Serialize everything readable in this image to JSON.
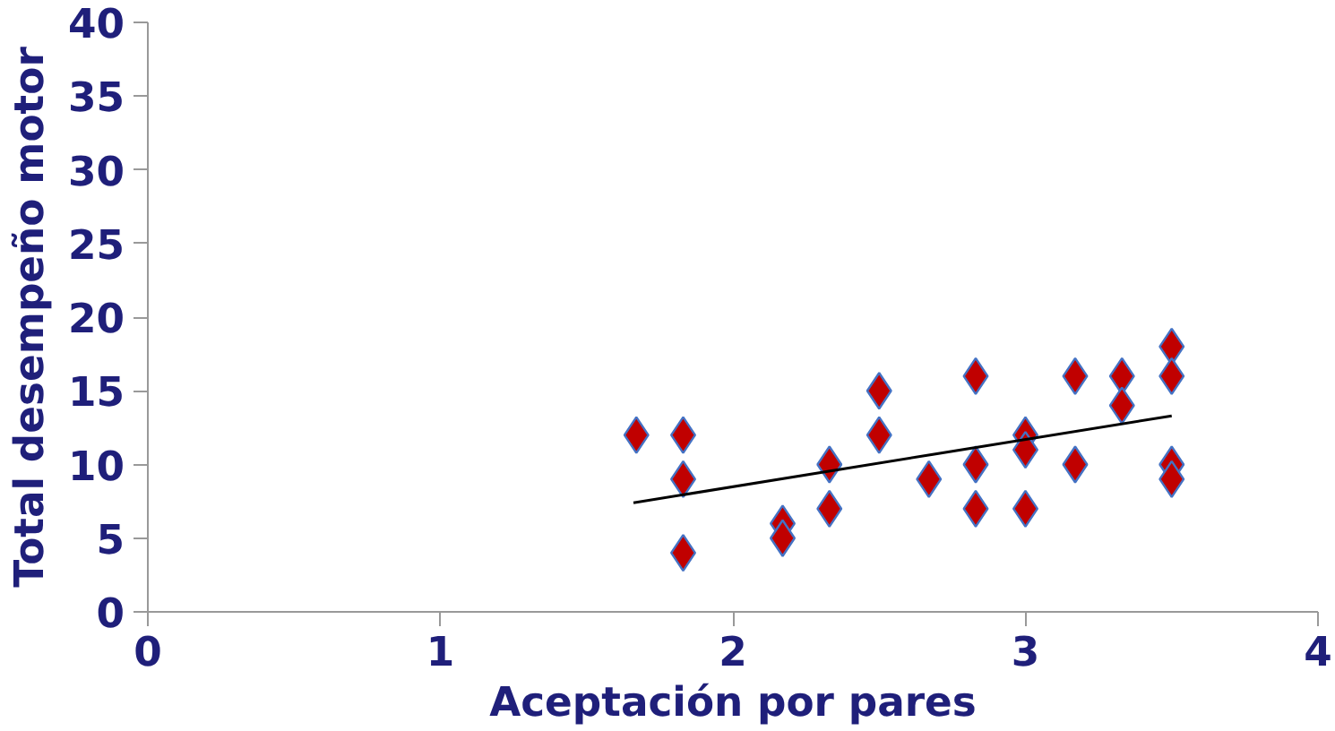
{
  "chart_data": {
    "type": "scatter",
    "xlabel": "Aceptación por pares",
    "ylabel": "Total desempeño motor",
    "xlim": [
      0,
      4
    ],
    "ylim": [
      0,
      40
    ],
    "xticks": [
      0,
      1,
      2,
      3,
      4
    ],
    "yticks": [
      0,
      5,
      10,
      15,
      20,
      25,
      30,
      35,
      40
    ],
    "grid": false,
    "series": [
      {
        "marker": "diamond",
        "color": "#c00000",
        "x": [
          1.67,
          1.83,
          1.83,
          1.83,
          2.17,
          2.17,
          2.33,
          2.33,
          2.5,
          2.5,
          2.67,
          2.83,
          2.83,
          2.83,
          3,
          3,
          3,
          3.17,
          3.17,
          3.33,
          3.33,
          3.5,
          3.5,
          3.5,
          3.5
        ],
        "values": [
          12,
          12,
          9,
          4,
          6,
          5,
          10,
          7,
          15,
          12,
          9,
          16,
          10,
          7,
          12,
          11,
          7,
          16,
          10,
          16,
          14,
          18,
          16,
          10,
          9
        ]
      },
      {
        "type": "line",
        "color": "#000000",
        "x": [
          1.66,
          3.5
        ],
        "values": [
          7.4,
          13.3
        ]
      }
    ]
  }
}
